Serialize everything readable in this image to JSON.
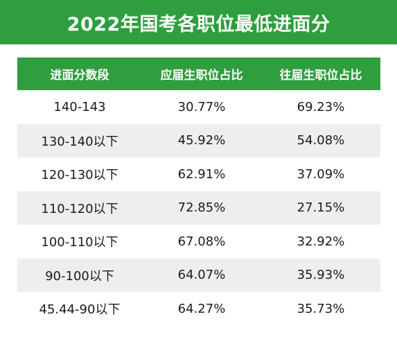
{
  "title": "2022年国考各职位最低进面分",
  "colors": {
    "accent": "#2e9e3e",
    "row_alt": "#eeeeee",
    "text": "#1a1a1a"
  },
  "table": {
    "headers": [
      "进面分数段",
      "应届生职位占比",
      "往届生职位占比"
    ],
    "rows": [
      [
        "140-143",
        "30.77%",
        "69.23%"
      ],
      [
        "130-140以下",
        "45.92%",
        "54.08%"
      ],
      [
        "120-130以下",
        "62.91%",
        "37.09%"
      ],
      [
        "110-120以下",
        "72.85%",
        "27.15%"
      ],
      [
        "100-110以下",
        "67.08%",
        "32.92%"
      ],
      [
        "90-100以下",
        "64.07%",
        "35.93%"
      ],
      [
        "45.44-90以下",
        "64.27%",
        "35.73%"
      ]
    ]
  }
}
